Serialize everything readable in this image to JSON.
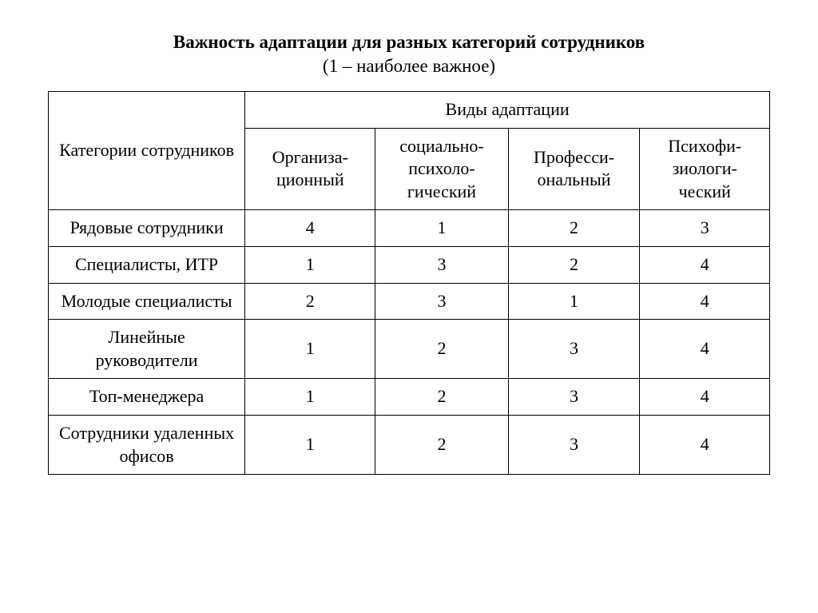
{
  "title": "Важность адаптации для разных категорий сотрудников",
  "subtitle": "(1 – наиболее важное)",
  "table": {
    "row_header_label": "Категории сотрудников",
    "group_header_label": "Виды адаптации",
    "columns": [
      "Организа-ционный",
      "социально-психоло-гический",
      "Професси-ональный",
      "Психофи-зиологи-ческий"
    ],
    "rows": [
      {
        "label": "Рядовые сотрудники",
        "values": [
          4,
          1,
          2,
          3
        ]
      },
      {
        "label": "Специалисты, ИТР",
        "values": [
          1,
          3,
          2,
          4
        ]
      },
      {
        "label": "Молодые специалисты",
        "values": [
          2,
          3,
          1,
          4
        ]
      },
      {
        "label": "Линейные руководители",
        "values": [
          1,
          2,
          3,
          4
        ]
      },
      {
        "label": "Топ-менеджера",
        "values": [
          1,
          2,
          3,
          4
        ]
      },
      {
        "label": "Сотрудники удаленных офисов",
        "values": [
          1,
          2,
          3,
          4
        ]
      }
    ]
  },
  "style": {
    "font_family": "Times New Roman",
    "title_fontsize": 23,
    "table_fontsize": 22,
    "border_color": "#000000",
    "background_color": "#ffffff",
    "text_color": "#000000"
  }
}
